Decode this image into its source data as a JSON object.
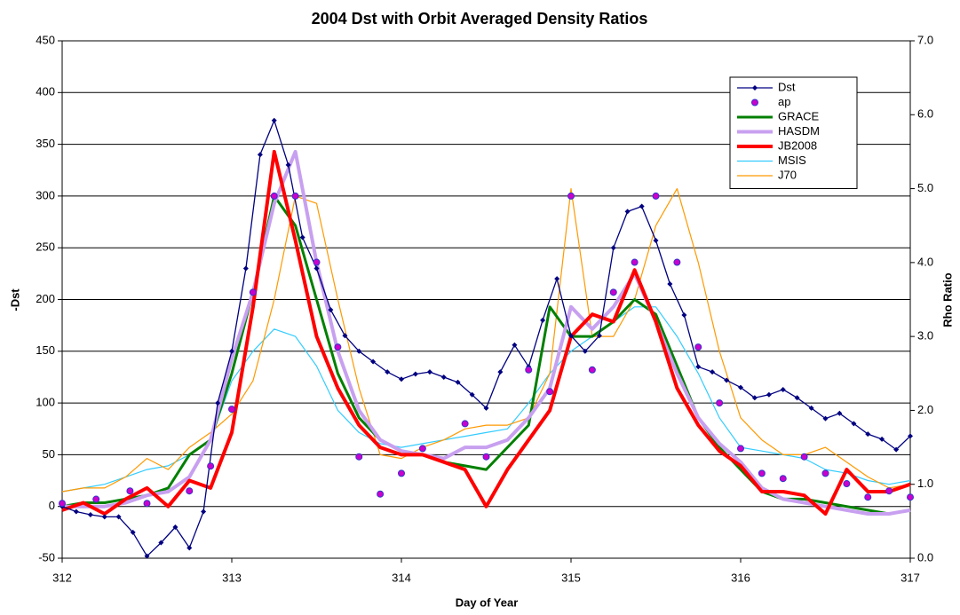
{
  "chart_data": {
    "type": "line",
    "title": "2004 Dst with Orbit Averaged Density Ratios",
    "xlabel": "Day of Year",
    "ylabel": "-Dst",
    "y2label": "Rho Ratio",
    "xlim": [
      312,
      317
    ],
    "xticks": [
      312,
      313,
      314,
      315,
      316,
      317
    ],
    "ylim": [
      -50,
      450
    ],
    "yticks": [
      -50,
      0,
      50,
      100,
      150,
      200,
      250,
      300,
      350,
      400,
      450
    ],
    "y2lim": [
      0,
      7
    ],
    "y2ticks": [
      {
        "value": 0,
        "label": "0.0"
      },
      {
        "value": 1,
        "label": "1.0"
      },
      {
        "value": 2,
        "label": "2.0"
      },
      {
        "value": 3,
        "label": "3.0"
      },
      {
        "value": 4,
        "label": "4.0"
      },
      {
        "value": 5,
        "label": "5.0"
      },
      {
        "value": 6,
        "label": "6.0"
      },
      {
        "value": 7,
        "label": "7.0"
      }
    ],
    "grid": true,
    "legend": "upper right",
    "series": [
      {
        "name": "Dst",
        "color": "#000080",
        "marker": "diamond",
        "x": [
          312,
          312.083,
          312.167,
          312.25,
          312.333,
          312.417,
          312.5,
          312.583,
          312.667,
          312.75,
          312.833,
          312.917,
          313,
          313.083,
          313.167,
          313.25,
          313.333,
          313.417,
          313.5,
          313.583,
          313.667,
          313.75,
          313.833,
          313.917,
          314,
          314.083,
          314.167,
          314.25,
          314.333,
          314.417,
          314.5,
          314.583,
          314.667,
          314.75,
          314.833,
          314.917,
          315,
          315.083,
          315.167,
          315.25,
          315.333,
          315.417,
          315.5,
          315.583,
          315.667,
          315.75,
          315.833,
          315.917,
          316,
          316.083,
          316.167,
          316.25,
          316.333,
          316.417,
          316.5,
          316.583,
          316.667,
          316.75,
          316.833,
          316.917,
          317
        ],
        "values": [
          0,
          -5,
          -8,
          -10,
          -10,
          -25,
          -48,
          -35,
          -20,
          -40,
          -5,
          100,
          150,
          230,
          340,
          373,
          330,
          260,
          230,
          190,
          165,
          150,
          140,
          130,
          123,
          128,
          130,
          125,
          120,
          108,
          95,
          130,
          156,
          135,
          180,
          220,
          165,
          150,
          165,
          250,
          285,
          290,
          257,
          215,
          185,
          135,
          130,
          122,
          115,
          105,
          108,
          113,
          105,
          95,
          85,
          90,
          80,
          70,
          65,
          55,
          68
        ]
      },
      {
        "name": "ap",
        "color": "#cc00cc",
        "marker": "circle",
        "x": [
          312,
          312.2,
          312.4,
          312.5,
          312.75,
          312.875,
          313,
          313.125,
          313.25,
          313.375,
          313.5,
          313.625,
          313.75,
          313.875,
          314,
          314.125,
          314.375,
          314.5,
          314.75,
          314.875,
          315,
          315.125,
          315.25,
          315.375,
          315.5,
          315.625,
          315.75,
          315.875,
          316,
          316.125,
          316.25,
          316.375,
          316.5,
          316.625,
          316.75,
          316.875,
          317
        ],
        "values": [
          3,
          7,
          15,
          3,
          15,
          39,
          94,
          207,
          300,
          300,
          236,
          154,
          48,
          12,
          32,
          56,
          80,
          48,
          132,
          111,
          300,
          132,
          207,
          236,
          300,
          236,
          154,
          100,
          56,
          32,
          27,
          48,
          32,
          22,
          9,
          15,
          9
        ]
      },
      {
        "name": "GRACE",
        "color": "#008000",
        "axis": "y2",
        "x": [
          312,
          312.125,
          312.25,
          312.375,
          312.5,
          312.625,
          312.75,
          312.875,
          313,
          313.125,
          313.25,
          313.375,
          313.5,
          313.625,
          313.75,
          313.875,
          314,
          314.125,
          314.25,
          314.375,
          314.5,
          314.625,
          314.75,
          314.875,
          315,
          315.125,
          315.25,
          315.375,
          315.5,
          315.625,
          315.75,
          315.875,
          316,
          316.125,
          316.25,
          316.375,
          316.5,
          316.625,
          316.75,
          316.875,
          317
        ],
        "values": [
          0.7,
          0.75,
          0.75,
          0.8,
          0.85,
          0.95,
          1.4,
          1.6,
          2.5,
          3.6,
          4.9,
          4.5,
          3.5,
          2.5,
          1.9,
          1.6,
          1.45,
          1.4,
          1.3,
          1.25,
          1.2,
          1.5,
          1.8,
          3.4,
          3.0,
          3.0,
          3.2,
          3.5,
          3.3,
          2.6,
          1.9,
          1.5,
          1.2,
          0.9,
          0.8,
          0.8,
          0.75,
          0.7,
          0.65,
          0.6,
          0.65
        ]
      },
      {
        "name": "HASDM",
        "color": "#c8a0f0",
        "axis": "y2",
        "x": [
          312,
          312.125,
          312.25,
          312.375,
          312.5,
          312.625,
          312.75,
          312.875,
          313,
          313.125,
          313.25,
          313.375,
          313.5,
          313.625,
          313.75,
          313.875,
          314,
          314.125,
          314.25,
          314.375,
          314.5,
          314.625,
          314.75,
          314.875,
          315,
          315.125,
          315.25,
          315.375,
          315.5,
          315.625,
          315.75,
          315.875,
          316,
          316.125,
          316.25,
          316.375,
          316.5,
          316.625,
          316.75,
          316.875,
          317
        ],
        "values": [
          0.7,
          0.7,
          0.7,
          0.75,
          0.85,
          0.9,
          1.1,
          1.6,
          2.7,
          3.6,
          4.8,
          5.5,
          4.0,
          2.8,
          2.0,
          1.6,
          1.45,
          1.4,
          1.35,
          1.5,
          1.5,
          1.6,
          1.9,
          2.3,
          3.4,
          3.1,
          3.4,
          3.85,
          3.2,
          2.5,
          1.9,
          1.55,
          1.3,
          0.95,
          0.8,
          0.75,
          0.7,
          0.65,
          0.6,
          0.6,
          0.65
        ]
      },
      {
        "name": "JB2008",
        "color": "#ff0000",
        "axis": "y2",
        "x": [
          312,
          312.125,
          312.25,
          312.375,
          312.5,
          312.625,
          312.75,
          312.875,
          313,
          313.125,
          313.25,
          313.375,
          313.5,
          313.625,
          313.75,
          313.875,
          314,
          314.125,
          314.25,
          314.375,
          314.5,
          314.625,
          314.75,
          314.875,
          315,
          315.125,
          315.25,
          315.375,
          315.5,
          315.625,
          315.75,
          315.875,
          316,
          316.125,
          316.25,
          316.375,
          316.5,
          316.625,
          316.75,
          316.875,
          317
        ],
        "values": [
          0.65,
          0.75,
          0.6,
          0.8,
          0.95,
          0.7,
          1.05,
          0.95,
          1.7,
          3.4,
          5.5,
          4.3,
          3.0,
          2.3,
          1.8,
          1.5,
          1.4,
          1.4,
          1.3,
          1.2,
          0.7,
          1.2,
          1.6,
          2.0,
          3.0,
          3.3,
          3.2,
          3.9,
          3.2,
          2.3,
          1.8,
          1.45,
          1.25,
          0.9,
          0.9,
          0.85,
          0.6,
          1.2,
          0.9,
          0.9,
          1.0
        ]
      },
      {
        "name": "MSIS",
        "color": "#33ccff",
        "axis": "y2",
        "x": [
          312,
          312.125,
          312.25,
          312.375,
          312.5,
          312.625,
          312.75,
          312.875,
          313,
          313.125,
          313.25,
          313.375,
          313.5,
          313.625,
          313.75,
          313.875,
          314,
          314.125,
          314.25,
          314.375,
          314.5,
          314.625,
          314.75,
          314.875,
          315,
          315.125,
          315.25,
          315.375,
          315.5,
          315.625,
          315.75,
          315.875,
          316,
          316.125,
          316.25,
          316.375,
          316.5,
          316.625,
          316.75,
          316.875,
          317
        ],
        "values": [
          0.9,
          0.95,
          1.0,
          1.1,
          1.2,
          1.25,
          1.4,
          1.6,
          2.4,
          2.8,
          3.1,
          3.0,
          2.6,
          2.0,
          1.7,
          1.55,
          1.5,
          1.55,
          1.6,
          1.65,
          1.7,
          1.75,
          2.1,
          2.5,
          2.8,
          3.0,
          3.2,
          3.4,
          3.4,
          3.0,
          2.5,
          1.9,
          1.5,
          1.45,
          1.4,
          1.35,
          1.2,
          1.15,
          1.05,
          1.0,
          1.05
        ]
      },
      {
        "name": "J70",
        "color": "#ff9900",
        "axis": "y2",
        "x": [
          312,
          312.125,
          312.25,
          312.375,
          312.5,
          312.625,
          312.75,
          312.875,
          313,
          313.125,
          313.25,
          313.375,
          313.5,
          313.625,
          313.75,
          313.875,
          314,
          314.125,
          314.25,
          314.375,
          314.5,
          314.625,
          314.75,
          314.875,
          315,
          315.125,
          315.25,
          315.375,
          315.5,
          315.625,
          315.75,
          315.875,
          316,
          316.125,
          316.25,
          316.375,
          316.5,
          316.625,
          316.75,
          316.875,
          317
        ],
        "values": [
          0.9,
          0.95,
          0.95,
          1.1,
          1.35,
          1.2,
          1.5,
          1.7,
          1.95,
          2.4,
          3.5,
          4.9,
          4.8,
          3.5,
          2.3,
          1.4,
          1.35,
          1.5,
          1.6,
          1.75,
          1.8,
          1.8,
          1.9,
          2.5,
          5.0,
          3.0,
          3.0,
          3.5,
          4.5,
          5.0,
          4.0,
          2.8,
          1.9,
          1.6,
          1.4,
          1.4,
          1.5,
          1.3,
          1.1,
          0.95,
          1.0
        ]
      }
    ]
  }
}
